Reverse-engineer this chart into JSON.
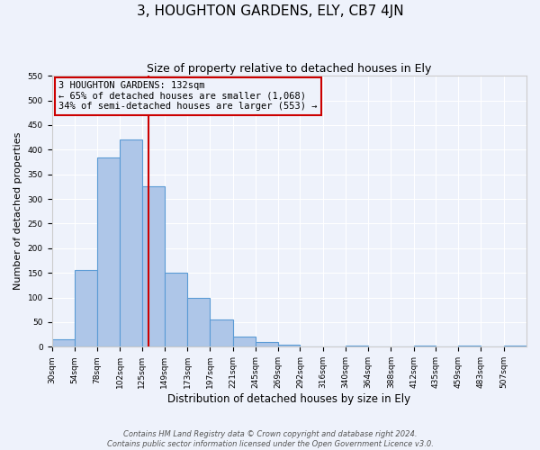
{
  "title": "3, HOUGHTON GARDENS, ELY, CB7 4JN",
  "subtitle": "Size of property relative to detached houses in Ely",
  "xlabel": "Distribution of detached houses by size in Ely",
  "ylabel": "Number of detached properties",
  "bar_values": [
    15,
    155,
    385,
    420,
    325,
    150,
    100,
    55,
    20,
    10,
    5,
    0,
    0,
    2,
    0,
    0,
    2,
    0,
    2,
    0,
    2
  ],
  "bar_labels": [
    "30sqm",
    "54sqm",
    "78sqm",
    "102sqm",
    "125sqm",
    "149sqm",
    "173sqm",
    "197sqm",
    "221sqm",
    "245sqm",
    "269sqm",
    "292sqm",
    "316sqm",
    "340sqm",
    "364sqm",
    "388sqm",
    "412sqm",
    "435sqm",
    "459sqm",
    "483sqm",
    "507sqm"
  ],
  "bin_edges": [
    30,
    54,
    78,
    102,
    125,
    149,
    173,
    197,
    221,
    245,
    269,
    292,
    316,
    340,
    364,
    388,
    412,
    435,
    459,
    483,
    507,
    531
  ],
  "bar_color": "#aec6e8",
  "bar_edge_color": "#5b9bd5",
  "vline_x": 132,
  "vline_color": "#cc0000",
  "ylim": [
    0,
    550
  ],
  "yticks": [
    0,
    50,
    100,
    150,
    200,
    250,
    300,
    350,
    400,
    450,
    500,
    550
  ],
  "annotation_title": "3 HOUGHTON GARDENS: 132sqm",
  "annotation_line1": "← 65% of detached houses are smaller (1,068)",
  "annotation_line2": "34% of semi-detached houses are larger (553) →",
  "annotation_box_color": "#cc0000",
  "footer_line1": "Contains HM Land Registry data © Crown copyright and database right 2024.",
  "footer_line2": "Contains public sector information licensed under the Open Government Licence v3.0.",
  "bg_color": "#eef2fb",
  "grid_color": "#ffffff",
  "title_fontsize": 11,
  "subtitle_fontsize": 9,
  "ylabel_fontsize": 8,
  "xlabel_fontsize": 8.5,
  "tick_fontsize": 6.5,
  "annot_fontsize": 7.5,
  "footer_fontsize": 6
}
